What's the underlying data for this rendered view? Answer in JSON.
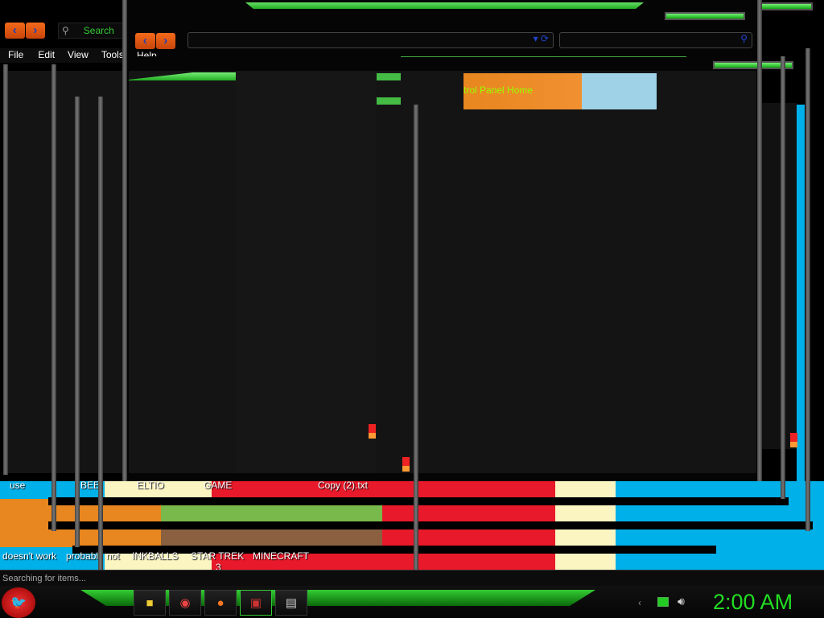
{
  "explorer": {
    "search_placeholder": "Search",
    "menu": [
      "File",
      "Edit",
      "View",
      "Tools",
      "Help"
    ],
    "status": "Searching for items..."
  },
  "control_panel": {
    "home_link": "trol Panel Home"
  },
  "desktop_labels": [
    "use",
    "BEE",
    "ELTIO",
    "GAME",
    "Copy (2).txt",
    "doesn't work",
    "probabl",
    "not",
    "INKBALLS",
    "STAR TREK",
    "MINECRAFT",
    "3"
  ],
  "taskbar": {
    "start_icon": "angry-bird-orb",
    "pinned": [
      {
        "name": "file-explorer",
        "glyph": "📁"
      },
      {
        "name": "chrome",
        "glyph": "◉"
      },
      {
        "name": "firefox",
        "glyph": "🦊"
      },
      {
        "name": "paint-app",
        "glyph": "🖼"
      },
      {
        "name": "control-panel",
        "glyph": "🖥"
      }
    ],
    "clock": "2:00 AM",
    "colors": {
      "accent": "#22cc22",
      "clock": "#22dd22"
    }
  }
}
